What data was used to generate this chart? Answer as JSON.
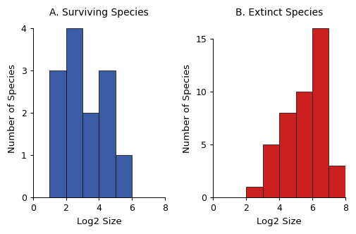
{
  "left_title": "A. Surviving Species",
  "right_title": "B. Extinct Species",
  "xlabel": "Log2 Size",
  "ylabel": "Number of Species",
  "left_color": "#3B5BA5",
  "right_color": "#CC2020",
  "edge_color": "#000000",
  "left_bin_edges": [
    1,
    2,
    3,
    4,
    5,
    6
  ],
  "left_values": [
    3,
    4,
    2,
    3,
    1
  ],
  "right_bin_edges": [
    2,
    3,
    4,
    5,
    6,
    7,
    8
  ],
  "right_values": [
    1,
    5,
    8,
    10,
    16,
    3
  ],
  "left_ylim": [
    0,
    4.2
  ],
  "right_ylim": [
    0,
    16.8
  ],
  "left_yticks": [
    0,
    1,
    2,
    3,
    4
  ],
  "right_yticks": [
    0,
    5,
    10,
    15
  ],
  "xlim": [
    0,
    8
  ],
  "xticks": [
    0,
    2,
    4,
    6,
    8
  ],
  "title_fontsize": 10,
  "label_fontsize": 9.5,
  "tick_fontsize": 9,
  "linewidth": 0.7,
  "bar_linewidth": 0.5
}
